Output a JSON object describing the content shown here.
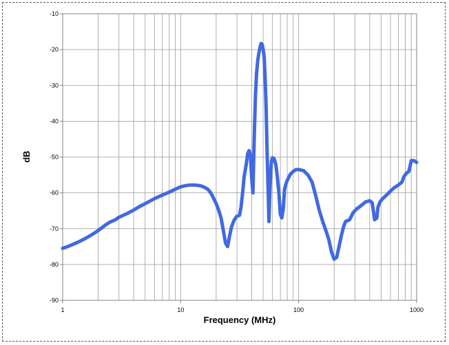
{
  "chart_data": {
    "type": "line",
    "title": "",
    "xlabel": "Frequency (MHz)",
    "ylabel": "dB",
    "xscale": "log",
    "xlim": [
      1,
      1000
    ],
    "ylim": [
      -90,
      -10
    ],
    "grid": true,
    "legend": "none",
    "x_ticks": [
      "1",
      "10",
      "100",
      "1000"
    ],
    "y_ticks": [
      "-10",
      "-20",
      "-30",
      "-40",
      "-50",
      "-60",
      "-70",
      "-80",
      "-90"
    ],
    "series": [
      {
        "name": "",
        "color": "#4169e1",
        "points": [
          [
            1,
            -75.5
          ],
          [
            1.1,
            -75
          ],
          [
            1.2,
            -74.5
          ],
          [
            1.3,
            -74
          ],
          [
            1.4,
            -73.5
          ],
          [
            1.5,
            -73
          ],
          [
            1.7,
            -72
          ],
          [
            1.9,
            -71
          ],
          [
            2,
            -70.5
          ],
          [
            2.3,
            -69
          ],
          [
            2.5,
            -68.2
          ],
          [
            2.8,
            -67.5
          ],
          [
            3,
            -66.8
          ],
          [
            3.5,
            -65.8
          ],
          [
            4,
            -64.8
          ],
          [
            4.5,
            -63.8
          ],
          [
            5,
            -63
          ],
          [
            5.5,
            -62.3
          ],
          [
            6,
            -61.6
          ],
          [
            7,
            -60.6
          ],
          [
            8,
            -59.8
          ],
          [
            9,
            -59
          ],
          [
            10,
            -58.3
          ],
          [
            11,
            -58
          ],
          [
            12,
            -57.8
          ],
          [
            13,
            -57.8
          ],
          [
            14,
            -57.9
          ],
          [
            15,
            -58.1
          ],
          [
            16,
            -58.5
          ],
          [
            17,
            -59
          ],
          [
            18,
            -60
          ],
          [
            19,
            -61.5
          ],
          [
            20,
            -63
          ],
          [
            21,
            -64.8
          ],
          [
            22,
            -67
          ],
          [
            23,
            -70.5
          ],
          [
            24,
            -74
          ],
          [
            25,
            -75
          ],
          [
            26,
            -72
          ],
          [
            27,
            -69.5
          ],
          [
            28.5,
            -67.5
          ],
          [
            30,
            -66.5
          ],
          [
            31.5,
            -66.3
          ],
          [
            32.5,
            -64
          ],
          [
            33.5,
            -60
          ],
          [
            34.5,
            -55.5
          ],
          [
            36,
            -52
          ],
          [
            37,
            -49
          ],
          [
            38,
            -48.2
          ],
          [
            39,
            -49.5
          ],
          [
            40,
            -56
          ],
          [
            41,
            -60
          ],
          [
            42,
            -45
          ],
          [
            43,
            -33
          ],
          [
            44,
            -26.5
          ],
          [
            45,
            -23
          ],
          [
            46,
            -21
          ],
          [
            47,
            -19.5
          ],
          [
            48,
            -18.3
          ],
          [
            49,
            -18.5
          ],
          [
            50,
            -20
          ],
          [
            51,
            -22
          ],
          [
            52,
            -28
          ],
          [
            53,
            -36
          ],
          [
            54,
            -48
          ],
          [
            55,
            -58
          ],
          [
            56,
            -68
          ],
          [
            57,
            -60
          ],
          [
            58,
            -54
          ],
          [
            59,
            -51
          ],
          [
            60,
            -50.2
          ],
          [
            62,
            -50.5
          ],
          [
            64,
            -52
          ],
          [
            66,
            -55.5
          ],
          [
            68,
            -60
          ],
          [
            70,
            -66
          ],
          [
            72,
            -67
          ],
          [
            74,
            -64.5
          ],
          [
            76,
            -59
          ],
          [
            78,
            -57.5
          ],
          [
            80,
            -56.5
          ],
          [
            85,
            -54.8
          ],
          [
            90,
            -54
          ],
          [
            95,
            -53.5
          ],
          [
            100,
            -53.5
          ],
          [
            110,
            -53.8
          ],
          [
            120,
            -55
          ],
          [
            130,
            -57
          ],
          [
            140,
            -61
          ],
          [
            150,
            -65
          ],
          [
            160,
            -68
          ],
          [
            170,
            -70.5
          ],
          [
            180,
            -73
          ],
          [
            190,
            -76.5
          ],
          [
            200,
            -78.5
          ],
          [
            210,
            -78
          ],
          [
            220,
            -75
          ],
          [
            230,
            -72
          ],
          [
            240,
            -69.5
          ],
          [
            250,
            -68
          ],
          [
            270,
            -67.5
          ],
          [
            290,
            -65.5
          ],
          [
            310,
            -64.5
          ],
          [
            340,
            -63.5
          ],
          [
            370,
            -62.5
          ],
          [
            400,
            -62.2
          ],
          [
            420,
            -62.8
          ],
          [
            430,
            -65
          ],
          [
            440,
            -67.5
          ],
          [
            460,
            -67
          ],
          [
            470,
            -64
          ],
          [
            490,
            -62.5
          ],
          [
            520,
            -61.5
          ],
          [
            560,
            -60.5
          ],
          [
            600,
            -59.5
          ],
          [
            650,
            -58.5
          ],
          [
            700,
            -57.8
          ],
          [
            750,
            -57
          ],
          [
            780,
            -55.5
          ],
          [
            820,
            -54.5
          ],
          [
            860,
            -54
          ],
          [
            900,
            -51
          ],
          [
            950,
            -51
          ],
          [
            1000,
            -51.5
          ]
        ]
      }
    ]
  }
}
